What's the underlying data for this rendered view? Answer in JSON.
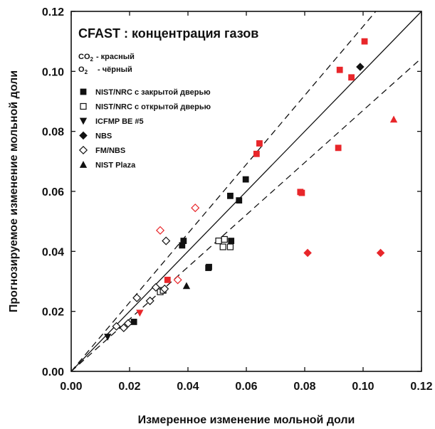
{
  "chart_data": {
    "type": "scatter",
    "title": "CFAST : концентрация газов",
    "xlabel": "Измеренное изменение мольной доли",
    "ylabel": "Прогнозируемое изменение мольной доли",
    "xlim": [
      0.0,
      0.12
    ],
    "ylim": [
      0.0,
      0.12
    ],
    "x_ticks": [
      "0.00",
      "0.02",
      "0.04",
      "0.06",
      "0.08",
      "0.10",
      "0.12"
    ],
    "y_ticks": [
      "0.00",
      "0.02",
      "0.04",
      "0.06",
      "0.08",
      "0.10",
      "0.12"
    ],
    "grid": false,
    "legend_position": "top-left",
    "color_notes": [
      {
        "species": "CO",
        "subscript": "2",
        "text": "- красный"
      },
      {
        "species": "O",
        "subscript": "2",
        "text": "- чёрный"
      }
    ],
    "colors": {
      "co2": "#e8262a",
      "o2": "#111111"
    },
    "reference_lines": [
      {
        "style": "solid",
        "slope": 1.0
      },
      {
        "style": "dashed",
        "slope": 1.15
      },
      {
        "style": "dashed",
        "slope": 0.87
      }
    ],
    "series": [
      {
        "name": "NIST/NRC с закрытой дверью",
        "marker": "square-filled",
        "points": [
          {
            "x": 0.0215,
            "y": 0.0165,
            "gas": "o2"
          },
          {
            "x": 0.038,
            "y": 0.042,
            "gas": "o2"
          },
          {
            "x": 0.0385,
            "y": 0.0435,
            "gas": "o2"
          },
          {
            "x": 0.047,
            "y": 0.0345,
            "gas": "o2"
          },
          {
            "x": 0.0472,
            "y": 0.0348,
            "gas": "o2"
          },
          {
            "x": 0.0545,
            "y": 0.0585,
            "gas": "o2"
          },
          {
            "x": 0.0548,
            "y": 0.0435,
            "gas": "o2"
          },
          {
            "x": 0.0575,
            "y": 0.057,
            "gas": "o2"
          },
          {
            "x": 0.0598,
            "y": 0.064,
            "gas": "o2"
          },
          {
            "x": 0.033,
            "y": 0.0305,
            "gas": "co2"
          },
          {
            "x": 0.0635,
            "y": 0.0725,
            "gas": "co2"
          },
          {
            "x": 0.0645,
            "y": 0.076,
            "gas": "co2"
          },
          {
            "x": 0.0785,
            "y": 0.0598,
            "gas": "co2"
          },
          {
            "x": 0.079,
            "y": 0.0595,
            "gas": "co2"
          },
          {
            "x": 0.0915,
            "y": 0.0745,
            "gas": "co2"
          },
          {
            "x": 0.092,
            "y": 0.1005,
            "gas": "co2"
          },
          {
            "x": 0.096,
            "y": 0.098,
            "gas": "co2"
          },
          {
            "x": 0.1005,
            "y": 0.11,
            "gas": "co2"
          }
        ]
      },
      {
        "name": "NIST/NRC с открытой дверью",
        "marker": "square-open",
        "points": [
          {
            "x": 0.0305,
            "y": 0.0265,
            "gas": "o2"
          },
          {
            "x": 0.0315,
            "y": 0.027,
            "gas": "o2"
          },
          {
            "x": 0.0505,
            "y": 0.0435,
            "gas": "o2"
          },
          {
            "x": 0.052,
            "y": 0.0415,
            "gas": "o2"
          },
          {
            "x": 0.0525,
            "y": 0.044,
            "gas": "o2"
          },
          {
            "x": 0.0545,
            "y": 0.0415,
            "gas": "o2"
          }
        ]
      },
      {
        "name": "ICFMP BE #5",
        "marker": "triangle-down-filled",
        "points": [
          {
            "x": 0.0125,
            "y": 0.0115,
            "gas": "o2"
          },
          {
            "x": 0.0235,
            "y": 0.0195,
            "gas": "co2"
          }
        ]
      },
      {
        "name": "NBS",
        "marker": "diamond-filled",
        "points": [
          {
            "x": 0.099,
            "y": 0.1015,
            "gas": "o2"
          },
          {
            "x": 0.081,
            "y": 0.0395,
            "gas": "co2"
          },
          {
            "x": 0.106,
            "y": 0.0395,
            "gas": "co2"
          }
        ]
      },
      {
        "name": "FM/NBS",
        "marker": "diamond-open",
        "points": [
          {
            "x": 0.0155,
            "y": 0.015,
            "gas": "o2"
          },
          {
            "x": 0.018,
            "y": 0.0145,
            "gas": "o2"
          },
          {
            "x": 0.0195,
            "y": 0.016,
            "gas": "o2"
          },
          {
            "x": 0.0225,
            "y": 0.0245,
            "gas": "o2"
          },
          {
            "x": 0.027,
            "y": 0.0235,
            "gas": "o2"
          },
          {
            "x": 0.029,
            "y": 0.028,
            "gas": "o2"
          },
          {
            "x": 0.032,
            "y": 0.0275,
            "gas": "o2"
          },
          {
            "x": 0.0325,
            "y": 0.0435,
            "gas": "o2"
          },
          {
            "x": 0.0305,
            "y": 0.047,
            "gas": "co2"
          },
          {
            "x": 0.0365,
            "y": 0.0305,
            "gas": "co2"
          },
          {
            "x": 0.0425,
            "y": 0.0545,
            "gas": "co2"
          }
        ]
      },
      {
        "name": "NIST Plaza",
        "marker": "triangle-up-filled",
        "points": [
          {
            "x": 0.0395,
            "y": 0.0285,
            "gas": "o2"
          },
          {
            "x": 0.1105,
            "y": 0.084,
            "gas": "co2"
          }
        ]
      }
    ]
  }
}
